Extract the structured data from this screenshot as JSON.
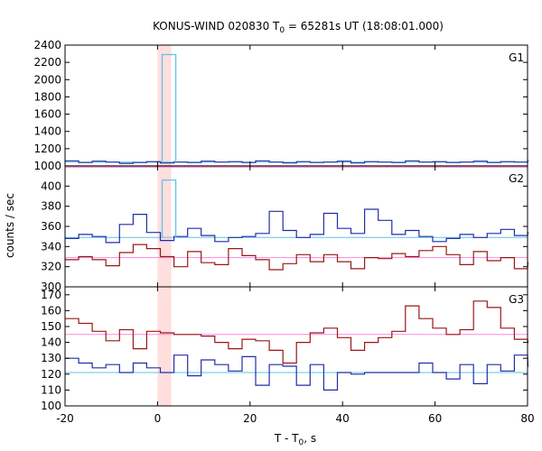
{
  "chart_data": {
    "type": "line",
    "title": {
      "main": "KONUS-WIND 020830 T",
      "sub": "0",
      "rest": " = 65281s UT (18:08:01.000)"
    },
    "xlabel": {
      "main": "T - T",
      "sub": "0",
      "rest": ", s"
    },
    "ylabel": "counts / sec",
    "xlim": [
      -20,
      80
    ],
    "xticks": [
      -20,
      0,
      20,
      40,
      60,
      80
    ],
    "highlight_band": [
      0,
      2.944
    ],
    "colors": {
      "blue": "#1f2ea8",
      "red": "#9b1717",
      "cyan": "#5fc3e6",
      "pink": "#ff88dd",
      "band": "#ffdede"
    },
    "panels": [
      {
        "label": "G1",
        "ylim": [
          1000,
          2400
        ],
        "yticks": [
          1000,
          1200,
          1400,
          1600,
          1800,
          2000,
          2200,
          2400
        ],
        "background_blue": 1045,
        "background_red": 985,
        "spike": {
          "x0": 1.0,
          "x1": 3.944,
          "value": 2290
        },
        "series": [
          {
            "color": "blue",
            "x0": -20,
            "dx": 2.944,
            "values": [
              1060,
              1040,
              1055,
              1045,
              1030,
              1040,
              1050,
              1035,
              1045,
              1040,
              1055,
              1045,
              1050,
              1040,
              1060,
              1045,
              1035,
              1050,
              1040,
              1045,
              1055,
              1035,
              1050,
              1045,
              1040,
              1060,
              1045,
              1050,
              1040,
              1045,
              1055,
              1040,
              1050,
              1045,
              1060
            ]
          },
          {
            "color": "red",
            "x0": -20,
            "dx": 2.944,
            "values": [
              980,
              990,
              975,
              985,
              995,
              980,
              990,
              985,
              975,
              1000,
              985,
              980,
              990,
              995,
              975,
              985,
              990,
              980,
              995,
              985,
              975,
              990,
              985,
              980,
              995,
              985,
              990,
              975,
              985,
              990,
              980,
              995,
              985,
              990,
              985
            ]
          }
        ]
      },
      {
        "label": "G2",
        "ylim": [
          300,
          420
        ],
        "yticks": [
          300,
          320,
          340,
          360,
          380,
          400
        ],
        "background_blue": 349,
        "background_red": 329,
        "spike": {
          "x0": 1.0,
          "x1": 3.944,
          "value": 406
        },
        "series": [
          {
            "color": "blue",
            "x0": -20,
            "dx": 2.944,
            "values": [
              348,
              352,
              350,
              344,
              362,
              372,
              354,
              346,
              350,
              358,
              351,
              345,
              349,
              350,
              353,
              375,
              356,
              349,
              352,
              373,
              358,
              353,
              377,
              366,
              352,
              356,
              350,
              345,
              348,
              352,
              349,
              353,
              357,
              351,
              354
            ]
          },
          {
            "color": "red",
            "x0": -20,
            "dx": 2.944,
            "values": [
              327,
              330,
              327,
              321,
              334,
              342,
              338,
              330,
              320,
              335,
              324,
              322,
              338,
              331,
              327,
              317,
              323,
              332,
              325,
              332,
              325,
              318,
              329,
              328,
              333,
              330,
              336,
              340,
              332,
              322,
              335,
              326,
              329,
              318,
              324
            ]
          }
        ]
      },
      {
        "label": "G3",
        "ylim": [
          100,
          175
        ],
        "yticks": [
          100,
          110,
          120,
          130,
          140,
          150,
          160,
          170
        ],
        "background_blue": 121,
        "background_red": 145,
        "series": [
          {
            "color": "blue",
            "x0": -20,
            "dx": 2.944,
            "values": [
              130,
              127,
              124,
              126,
              121,
              127,
              124,
              121,
              132,
              119,
              129,
              126,
              122,
              131,
              113,
              126,
              125,
              113,
              126,
              110,
              121,
              120,
              121,
              121,
              121,
              121,
              127,
              121,
              117,
              126,
              114,
              126,
              122,
              132,
              125
            ]
          },
          {
            "color": "red",
            "x0": -20,
            "dx": 2.944,
            "values": [
              155,
              152,
              147,
              141,
              148,
              136,
              147,
              146,
              145,
              145,
              144,
              140,
              136,
              142,
              141,
              135,
              127,
              140,
              146,
              149,
              143,
              135,
              140,
              143,
              147,
              163,
              155,
              149,
              145,
              148,
              166,
              162,
              149,
              142,
              140
            ]
          }
        ]
      }
    ]
  }
}
